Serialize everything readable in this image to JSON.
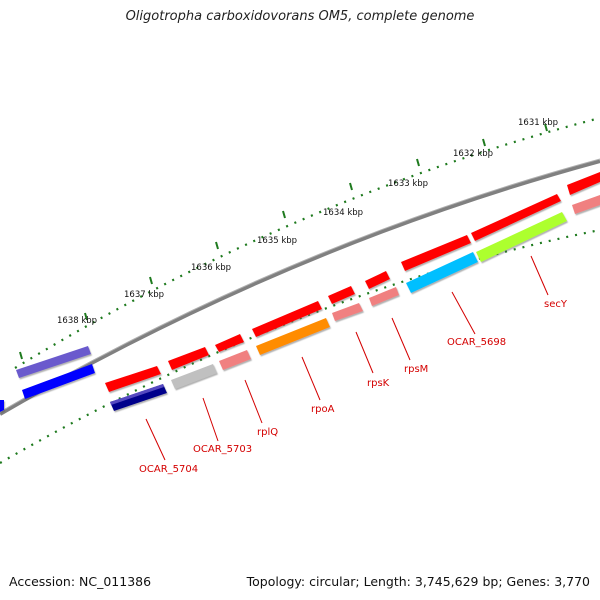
{
  "title": "Oligotropha carboxidovorans OM5, complete genome",
  "footer": {
    "accession": "Accession: NC_011386",
    "summary": "Topology: circular; Length: 3,745,629 bp; Genes: 3,770"
  },
  "ruler_labels": [
    "1631 kbp",
    "1632 kbp",
    "1633 kbp",
    "1634 kbp",
    "1635 kbp",
    "1636 kbp",
    "1637 kbp",
    "1638 kbp"
  ],
  "gene_labels": [
    "secY",
    "OCAR_5698",
    "rpsM",
    "rpsK",
    "rpoA",
    "rplQ",
    "OCAR_5703",
    "OCAR_5704"
  ],
  "colors": {
    "gene_red": "#ff0000",
    "gene_pink": "#f08080",
    "gene_orange": "#ff8c00",
    "gene_lime": "#adff2f",
    "gene_cyan": "#00bfff",
    "gene_gray": "#c0c0c0",
    "gene_navy": "#00008b",
    "gene_blue": "#0000ff",
    "gene_slate": "#6a5acd",
    "backbone": "#808080",
    "tick_green": "#1e7a1e",
    "label_red": "#d40000"
  }
}
